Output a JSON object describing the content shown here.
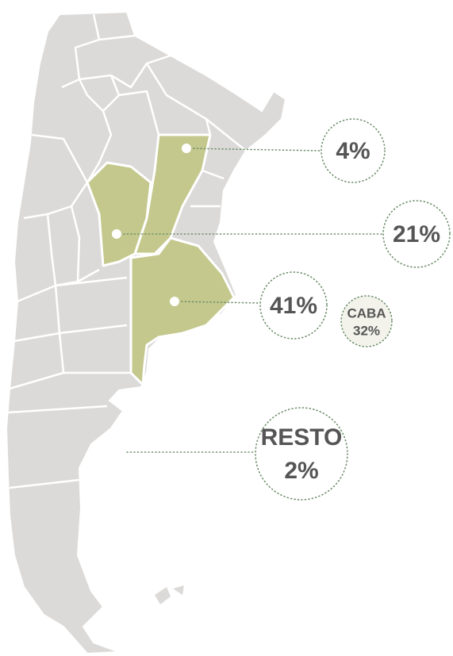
{
  "callouts": [
    {
      "label": "4%"
    },
    {
      "label": "21%"
    },
    {
      "label": "41%"
    },
    {
      "name": "CABA",
      "label": "32%"
    },
    {
      "name": "RESTO",
      "label": "2%"
    }
  ]
}
